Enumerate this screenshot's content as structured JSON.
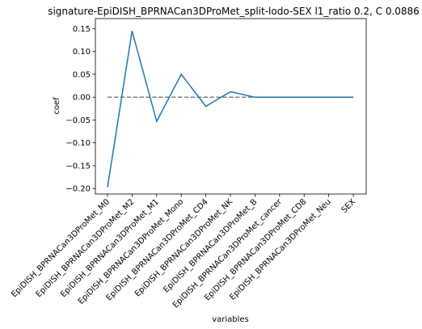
{
  "chart_data": {
    "type": "line",
    "title": "signature-EpiDISH_BPRNACan3DProMet_split-lodo-SEX l1_ratio 0.2, C 0.0886",
    "xlabel": "variables",
    "ylabel": "coef",
    "categories": [
      "EpiDISH_BPRNACan3DProMet_M0",
      "EpiDISH_BPRNACan3DProMet_M2",
      "EpiDISH_BPRNACan3DProMet_M1",
      "EpiDISH_BPRNACan3DProMet_Mono",
      "EpiDISH_BPRNACan3DProMet_CD4",
      "EpiDISH_BPRNACan3DProMet_NK",
      "EpiDISH_BPRNACan3DProMet_B",
      "EpiDISH_BPRNACan3DProMet_cancer",
      "EpiDISH_BPRNACan3DProMet_CD8",
      "EpiDISH_BPRNACan3DProMet_Neu",
      "SEX"
    ],
    "values": [
      -0.197,
      0.145,
      -0.053,
      0.05,
      -0.02,
      0.012,
      0.0,
      0.0,
      0.0,
      0.0,
      0.0
    ],
    "reference_line": {
      "value": 0.0,
      "style": "dashed",
      "color": "#808080"
    },
    "ylim": [
      -0.212,
      0.172
    ],
    "yticks": [
      -0.2,
      -0.15,
      -0.1,
      -0.05,
      0.0,
      0.05,
      0.1,
      0.15
    ],
    "ytick_labels": [
      "−0.20",
      "−0.15",
      "−0.10",
      "−0.05",
      "0.00",
      "0.05",
      "0.10",
      "0.15"
    ],
    "grid": false,
    "series_color": "#1f77b4"
  }
}
